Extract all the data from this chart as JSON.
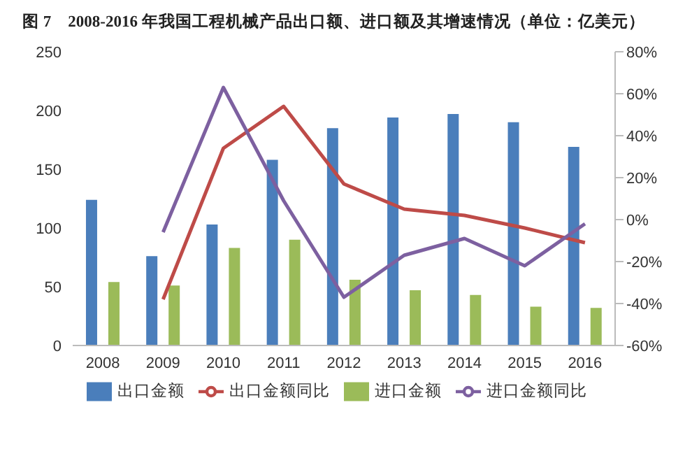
{
  "chart_data": {
    "type": "bar",
    "title": "图 7　2008-2016 年我国工程机械产品出口额、进口额及其增速情况（单位：亿美元）",
    "categories": [
      "2008",
      "2009",
      "2010",
      "2011",
      "2012",
      "2013",
      "2014",
      "2015",
      "2016"
    ],
    "series": [
      {
        "name": "出口金额",
        "color": "#4a7ebb",
        "values": [
          124,
          76,
          103,
          158,
          185,
          194,
          197,
          190,
          169
        ]
      },
      {
        "name": "进口金额",
        "color": "#9bbb59",
        "values": [
          54,
          51,
          83,
          90,
          56,
          47,
          43,
          33,
          32
        ]
      },
      {
        "name": "出口金额同比",
        "type": "line",
        "axis": "y2",
        "color": "#be4b48",
        "values": [
          null,
          -38,
          34,
          54,
          17,
          5,
          2,
          -4,
          -11
        ]
      },
      {
        "name": "进口金额同比",
        "type": "line",
        "axis": "y2",
        "color": "#7d60a0",
        "values": [
          null,
          -6,
          63,
          9,
          -37,
          -17,
          -9,
          -22,
          -2
        ]
      }
    ],
    "ylim": [
      0,
      250
    ],
    "yticks": [
      0,
      50,
      100,
      150,
      200,
      250
    ],
    "y2lim": [
      -60,
      80
    ],
    "y2ticks": [
      {
        "value": -60,
        "label": "-60%"
      },
      {
        "value": -40,
        "label": "-40%"
      },
      {
        "value": -20,
        "label": "-20%"
      },
      {
        "value": 0,
        "label": "0%"
      },
      {
        "value": 20,
        "label": "20%"
      },
      {
        "value": 40,
        "label": "40%"
      },
      {
        "value": 60,
        "label": "60%"
      },
      {
        "value": 80,
        "label": "80%"
      }
    ],
    "grid": false,
    "legend": "bottom",
    "marker": "none",
    "line_style": "solid"
  }
}
